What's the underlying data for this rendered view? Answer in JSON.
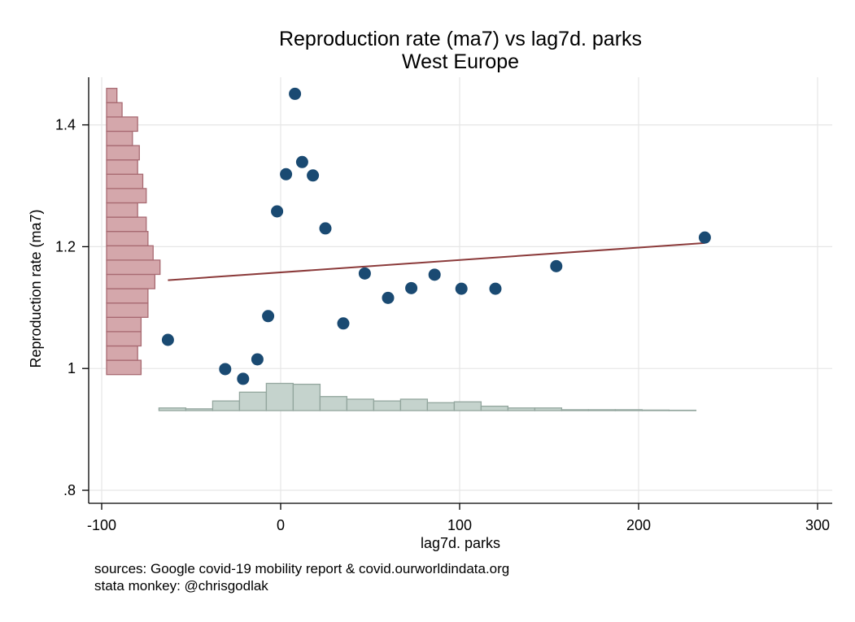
{
  "chart_data": {
    "type": "scatter",
    "title": "Reproduction rate (ma7) vs lag7d. parks",
    "subtitle": "West Europe",
    "xlabel": "lag7d. parks",
    "ylabel": "Reproduction rate (ma7)",
    "xlim": [
      -100,
      310
    ],
    "ylim": [
      0.78,
      1.48
    ],
    "x_ticks": [
      -100,
      0,
      100,
      200,
      300
    ],
    "x_tick_labels": [
      "-100",
      "0",
      "100",
      "200",
      "300"
    ],
    "y_ticks": [
      0.8,
      1.0,
      1.2,
      1.4
    ],
    "y_tick_labels": [
      ".8",
      "1",
      "1.2",
      "1.4"
    ],
    "grid": true,
    "colors": {
      "points": "#1a4a72",
      "fit_line": "#8b3a3a",
      "y_hist_fill": "#d4a7ab",
      "y_hist_stroke": "#a86a72",
      "x_hist_fill": "#c5d3cd",
      "x_hist_stroke": "#93a69e"
    },
    "points": [
      {
        "x": -63,
        "y": 1.047
      },
      {
        "x": -31,
        "y": 0.999
      },
      {
        "x": -21,
        "y": 0.983
      },
      {
        "x": -13,
        "y": 1.015
      },
      {
        "x": -7,
        "y": 1.086
      },
      {
        "x": -2,
        "y": 1.258
      },
      {
        "x": 3,
        "y": 1.319
      },
      {
        "x": 8,
        "y": 1.451
      },
      {
        "x": 12,
        "y": 1.339
      },
      {
        "x": 18,
        "y": 1.317
      },
      {
        "x": 25,
        "y": 1.23
      },
      {
        "x": 35,
        "y": 1.074
      },
      {
        "x": 47,
        "y": 1.156
      },
      {
        "x": 60,
        "y": 1.116
      },
      {
        "x": 73,
        "y": 1.132
      },
      {
        "x": 86,
        "y": 1.154
      },
      {
        "x": 101,
        "y": 1.131
      },
      {
        "x": 120,
        "y": 1.131
      },
      {
        "x": 154,
        "y": 1.168
      },
      {
        "x": 237,
        "y": 1.215
      }
    ],
    "fit_line": {
      "x": [
        -63,
        237
      ],
      "y": [
        1.145,
        1.206
      ]
    },
    "y_histogram": {
      "bin_width": 0.0235,
      "bins": [
        {
          "y_lo": 0.99,
          "count": 20
        },
        {
          "y_lo": 1.0135,
          "count": 18
        },
        {
          "y_lo": 1.037,
          "count": 20
        },
        {
          "y_lo": 1.0605,
          "count": 20
        },
        {
          "y_lo": 1.084,
          "count": 24
        },
        {
          "y_lo": 1.1075,
          "count": 24
        },
        {
          "y_lo": 1.131,
          "count": 28
        },
        {
          "y_lo": 1.1545,
          "count": 31
        },
        {
          "y_lo": 1.178,
          "count": 27
        },
        {
          "y_lo": 1.2015,
          "count": 24
        },
        {
          "y_lo": 1.225,
          "count": 23
        },
        {
          "y_lo": 1.2485,
          "count": 18
        },
        {
          "y_lo": 1.272,
          "count": 23
        },
        {
          "y_lo": 1.2955,
          "count": 21
        },
        {
          "y_lo": 1.319,
          "count": 18
        },
        {
          "y_lo": 1.3425,
          "count": 19
        },
        {
          "y_lo": 1.366,
          "count": 15
        },
        {
          "y_lo": 1.3895,
          "count": 18
        },
        {
          "y_lo": 1.413,
          "count": 9
        },
        {
          "y_lo": 1.4365,
          "count": 6
        }
      ]
    },
    "x_histogram": {
      "bin_width": 15,
      "bins": [
        {
          "x_lo": -68,
          "count": 3
        },
        {
          "x_lo": -53,
          "count": 2
        },
        {
          "x_lo": -38,
          "count": 11
        },
        {
          "x_lo": -23,
          "count": 21
        },
        {
          "x_lo": -8,
          "count": 31
        },
        {
          "x_lo": 7,
          "count": 30
        },
        {
          "x_lo": 22,
          "count": 16
        },
        {
          "x_lo": 37,
          "count": 13
        },
        {
          "x_lo": 52,
          "count": 11
        },
        {
          "x_lo": 67,
          "count": 13
        },
        {
          "x_lo": 82,
          "count": 9
        },
        {
          "x_lo": 97,
          "count": 10
        },
        {
          "x_lo": 112,
          "count": 5
        },
        {
          "x_lo": 127,
          "count": 3
        },
        {
          "x_lo": 142,
          "count": 3
        },
        {
          "x_lo": 157,
          "count": 1
        },
        {
          "x_lo": 172,
          "count": 1
        },
        {
          "x_lo": 187,
          "count": 1
        },
        {
          "x_lo": 202,
          "count": 0.6
        },
        {
          "x_lo": 217,
          "count": 0.4
        }
      ]
    }
  },
  "footer": {
    "source_note": "sources: Google covid-19 mobility report & covid.ourworldindata.org",
    "author_note": "stata monkey: @chrisgodlak"
  }
}
